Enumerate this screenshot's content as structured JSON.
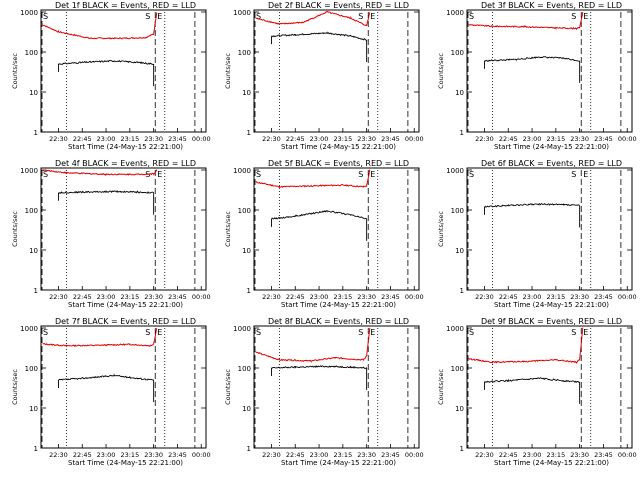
{
  "figure": {
    "ylabel": "Counts/sec",
    "xlabel": "Start Time (24-May-15 22:21:00)",
    "x_ticks": [
      "22:30",
      "22:45",
      "23:00",
      "23:15",
      "23:30",
      "23:45",
      "00:00"
    ],
    "y_ticks": [
      "1",
      "10",
      "100",
      "1000"
    ],
    "marker_s": "S",
    "marker_e": "E"
  },
  "chart_data": [
    {
      "type": "line",
      "title": "Det 1f BLACK = Events, RED = LLD",
      "scale": "log",
      "ylim": [
        1,
        1000
      ],
      "red": {
        "x": [
          "22:19",
          "22:30",
          "22:50",
          "23:10",
          "23:25",
          "23:30",
          "23:32"
        ],
        "y": [
          500,
          320,
          220,
          220,
          230,
          280,
          1000
        ]
      },
      "black": {
        "x": [
          "22:30",
          "22:45",
          "23:05",
          "23:20",
          "23:30"
        ],
        "y": [
          50,
          55,
          60,
          55,
          50
        ]
      }
    },
    {
      "type": "line",
      "title": "Det 2f BLACK = Events, RED = LLD",
      "scale": "log",
      "ylim": [
        1,
        1000
      ],
      "red": {
        "x": [
          "22:20",
          "22:35",
          "22:50",
          "23:05",
          "23:20",
          "23:30",
          "23:32"
        ],
        "y": [
          700,
          500,
          550,
          1000,
          700,
          450,
          1000
        ]
      },
      "black": {
        "x": [
          "22:30",
          "22:45",
          "23:05",
          "23:20",
          "23:30"
        ],
        "y": [
          250,
          270,
          300,
          250,
          200
        ]
      }
    },
    {
      "type": "line",
      "title": "Det 3f BLACK = Events, RED = LLD",
      "scale": "log",
      "ylim": [
        1,
        1000
      ],
      "red": {
        "x": [
          "22:20",
          "22:35",
          "22:55",
          "23:15",
          "23:28",
          "23:30",
          "23:32"
        ],
        "y": [
          480,
          440,
          430,
          400,
          390,
          400,
          1000
        ]
      },
      "black": {
        "x": [
          "22:30",
          "22:50",
          "23:05",
          "23:20",
          "23:30"
        ],
        "y": [
          60,
          65,
          75,
          70,
          60
        ]
      }
    },
    {
      "type": "line",
      "title": "Det 4f BLACK = Events, RED = LLD",
      "scale": "log",
      "ylim": [
        1,
        1000
      ],
      "red": {
        "x": [
          "22:20",
          "22:35",
          "23:00",
          "23:20",
          "23:30",
          "23:32"
        ],
        "y": [
          1000,
          850,
          780,
          780,
          800,
          1000
        ]
      },
      "black": {
        "x": [
          "22:30",
          "22:45",
          "23:05",
          "23:20",
          "23:30"
        ],
        "y": [
          270,
          280,
          290,
          280,
          270
        ]
      }
    },
    {
      "type": "line",
      "title": "Det 5f BLACK = Events, RED = LLD",
      "scale": "log",
      "ylim": [
        1,
        1000
      ],
      "red": {
        "x": [
          "22:20",
          "22:35",
          "22:55",
          "23:15",
          "23:28",
          "23:30",
          "23:32"
        ],
        "y": [
          500,
          380,
          400,
          420,
          380,
          400,
          1000
        ]
      },
      "black": {
        "x": [
          "22:30",
          "22:45",
          "23:05",
          "23:20",
          "23:30"
        ],
        "y": [
          60,
          70,
          95,
          75,
          60
        ]
      }
    },
    {
      "type": "line",
      "title": "Det 6f BLACK = Events, RED = LLD",
      "scale": "log",
      "ylim": [
        1,
        1000
      ],
      "red": {
        "x": [],
        "y": []
      },
      "black": {
        "x": [
          "22:30",
          "22:45",
          "23:05",
          "23:20",
          "23:30"
        ],
        "y": [
          120,
          130,
          140,
          135,
          130
        ]
      }
    },
    {
      "type": "line",
      "title": "Det 7f BLACK = Events, RED = LLD",
      "scale": "log",
      "ylim": [
        1,
        1000
      ],
      "red": {
        "x": [
          "22:20",
          "22:35",
          "22:55",
          "23:15",
          "23:28",
          "23:30",
          "23:32"
        ],
        "y": [
          400,
          360,
          370,
          390,
          360,
          400,
          1000
        ]
      },
      "black": {
        "x": [
          "22:30",
          "22:45",
          "23:05",
          "23:20",
          "23:30"
        ],
        "y": [
          50,
          55,
          65,
          55,
          50
        ]
      }
    },
    {
      "type": "line",
      "title": "Det 8f BLACK = Events, RED = LLD",
      "scale": "log",
      "ylim": [
        1,
        1000
      ],
      "red": {
        "x": [
          "22:20",
          "22:35",
          "22:55",
          "23:10",
          "23:28",
          "23:30",
          "23:32"
        ],
        "y": [
          250,
          160,
          150,
          180,
          160,
          200,
          1000
        ]
      },
      "black": {
        "x": [
          "22:30",
          "22:45",
          "23:05",
          "23:20",
          "23:30"
        ],
        "y": [
          100,
          105,
          110,
          105,
          100
        ]
      }
    },
    {
      "type": "line",
      "title": "Det 9f BLACK = Events, RED = LLD",
      "scale": "log",
      "ylim": [
        1,
        1000
      ],
      "red": {
        "x": [
          "22:20",
          "22:35",
          "22:55",
          "23:15",
          "23:28",
          "23:30",
          "23:32"
        ],
        "y": [
          170,
          140,
          145,
          160,
          140,
          160,
          1000
        ]
      },
      "black": {
        "x": [
          "22:30",
          "22:45",
          "23:05",
          "23:20",
          "23:30"
        ],
        "y": [
          45,
          48,
          55,
          48,
          45
        ]
      }
    }
  ]
}
